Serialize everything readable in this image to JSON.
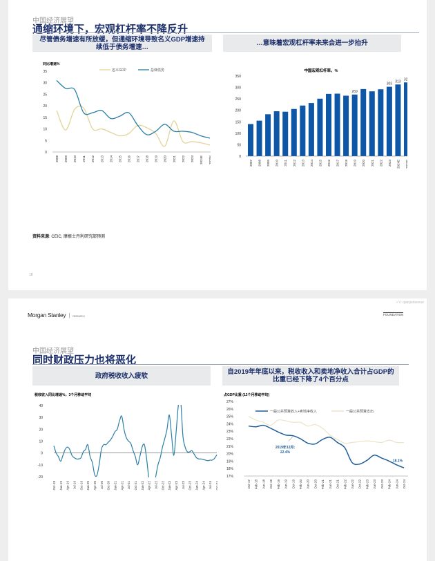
{
  "slide1": {
    "kicker": "中国经济展望",
    "title": "通缩环境下，宏观杠杆率不降反升",
    "left_box": "尽管债务增速有所放缓，但通缩环境导致名义GDP增速持续低于债务增速…",
    "right_box": "…意味着宏观杠杆率未来会进一步抬升",
    "source_label": "资料来源",
    "source_text": ": CEIC, 摩根士丹利研究部预测",
    "page_number": "18"
  },
  "slide2": {
    "watermark": "• V: qianjiudaoxue",
    "logo": "Morgan Stanley",
    "logo_sub": "RESEARCH",
    "foundation": "FOUNDATION",
    "kicker": "中国经济展望",
    "title": "同时财政压力也将恶化",
    "left_box": "政府税收收入疲软",
    "right_box": "自2019年年底以来，税收收入和卖地净收入合计占GDP的比重已经下降了4个百分点"
  },
  "chart_data": [
    {
      "type": "line",
      "ylabel": "同比增速%",
      "ylim": [
        0,
        35
      ],
      "yticks": [
        0,
        5,
        10,
        15,
        20,
        25,
        30,
        35
      ],
      "categories": [
        "2008",
        "2009",
        "2010",
        "2011",
        "2012",
        "2013",
        "2014",
        "2015",
        "2016",
        "2017",
        "2018",
        "2019",
        "2020",
        "2021",
        "2022",
        "2023",
        "2024E",
        "2025E"
      ],
      "series": [
        {
          "name": "名义GDP",
          "color": "#e3d39a",
          "values": [
            18,
            9.5,
            18.5,
            19,
            10,
            10,
            8.5,
            7,
            8,
            11.5,
            10.5,
            8,
            2.5,
            13.5,
            4.5,
            4.5,
            4,
            3
          ]
        },
        {
          "name": "总体债务",
          "color": "#2a7fa6",
          "values": [
            31,
            27.5,
            27,
            17,
            17,
            18,
            14.5,
            15.5,
            17,
            11.5,
            7.5,
            9,
            12,
            9,
            9,
            8.5,
            7,
            6
          ]
        }
      ],
      "legend": "top"
    },
    {
      "type": "bar",
      "title": "中国宏观杠杆率，%",
      "ylim": [
        0,
        350
      ],
      "yticks": [
        0,
        50,
        100,
        150,
        200,
        250,
        300,
        350
      ],
      "color": "#0e56a6",
      "categories": [
        "2007",
        "2008",
        "2009",
        "2010",
        "2011",
        "2012",
        "2013",
        "2014",
        "2015",
        "2016",
        "2017",
        "2018",
        "2019",
        "2020",
        "2021",
        "2022",
        "2023",
        "2024E",
        "2025E"
      ],
      "values": [
        140,
        155,
        183,
        196,
        194,
        206,
        221,
        232,
        251,
        272,
        273,
        264,
        269,
        293,
        283,
        292,
        303,
        313,
        322
      ],
      "data_labels": {
        "2019": "269",
        "2023": "303",
        "2024E": "313",
        "2025E": "322"
      }
    },
    {
      "type": "line",
      "ylabel": "税收收入同比增速%，3个月移动平均",
      "ylim": [
        -20,
        40
      ],
      "yticks": [
        -20,
        -10,
        0,
        10,
        20,
        30,
        40
      ],
      "color": "#2a7fa6",
      "tick_labels": [
        "Oct-18",
        "Jan-19",
        "Apr-19",
        "Jul-19",
        "Oct-19",
        "Jan-20",
        "Apr-20",
        "Jul-20",
        "Oct-20",
        "Jan-21",
        "Apr-21",
        "Jul-21",
        "Oct-21",
        "Jan-22",
        "Apr-22",
        "Jul-22",
        "Oct-22",
        "Jan-23",
        "Apr-23",
        "Jul-23",
        "Oct-23",
        "Jan-24",
        "Apr-24",
        "Jul-24",
        "Oct-24"
      ],
      "monthly_values": [
        6,
        0,
        -3,
        -7,
        -2,
        3,
        5,
        3,
        -2,
        -4,
        -5,
        -5,
        -4,
        1,
        3,
        7,
        -3,
        -8,
        -18,
        -19,
        -10,
        3,
        7,
        7,
        9,
        11,
        14,
        18,
        20,
        27,
        31,
        20,
        13,
        10,
        8,
        2,
        -3,
        -10,
        -3,
        5,
        7,
        -5,
        -22,
        -30,
        -30,
        -20,
        -10,
        -4,
        5,
        12,
        20,
        32,
        15,
        -2,
        17,
        40,
        45,
        15,
        5,
        1,
        1,
        2,
        -1,
        -4,
        -5,
        -5,
        -5.5,
        -6,
        -6.5,
        -6,
        -6,
        -4.5,
        -1.5
      ]
    },
    {
      "type": "line",
      "ylabel": "占GDP比重 (12个月移动平均)",
      "ylim": [
        17,
        27
      ],
      "yticks": [
        "17%",
        "18%",
        "19%",
        "20%",
        "21%",
        "22%",
        "23%",
        "24%",
        "25%",
        "26%",
        "27%"
      ],
      "categories": [
        "Oct-17",
        "Feb-18",
        "Jun-18",
        "Oct-18",
        "Feb-19",
        "Jun-19",
        "Oct-19",
        "Feb-20",
        "Jun-20",
        "Oct-20",
        "Feb-21",
        "Jun-21",
        "Oct-21",
        "Feb-22",
        "Jun-22",
        "Oct-22",
        "Feb-23",
        "Jun-23",
        "Oct-23",
        "Feb-24",
        "Jun-24",
        "Oct-24"
      ],
      "series": [
        {
          "name": "一般公共预算收入+卖地净收入",
          "color": "#1f5c99",
          "values": [
            23.7,
            23.6,
            23.8,
            23.4,
            22.9,
            22.5,
            22.4,
            22.0,
            21.4,
            21.3,
            21.9,
            22.2,
            21.5,
            20.8,
            18.8,
            18.6,
            19.1,
            19.8,
            19.4,
            19.0,
            18.5,
            18.1
          ]
        },
        {
          "name": "一般公共预算支出",
          "color": "#ece3c8",
          "values": [
            25.0,
            24.5,
            24.2,
            23.8,
            24.5,
            24.4,
            24.2,
            24.2,
            23.7,
            23.9,
            23.4,
            22.5,
            21.9,
            21.4,
            21.5,
            21.6,
            21.7,
            21.6,
            21.5,
            21.8,
            21.5,
            21.5
          ]
        }
      ],
      "annotations": [
        "2019年12月:",
        "22.4%",
        "18.1%"
      ],
      "legend": "top"
    }
  ]
}
